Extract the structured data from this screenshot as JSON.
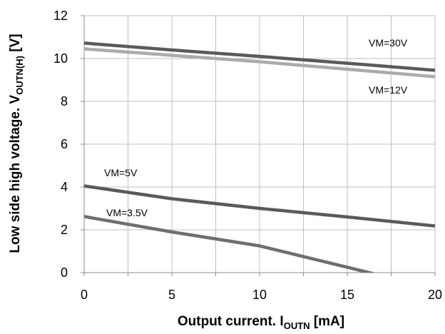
{
  "chart_data": {
    "type": "line",
    "xlabel_main": "Output current. I",
    "xlabel_sub": "OUTN",
    "xlabel_tail": " [mA]",
    "ylabel_main": "Low side high voltage. V",
    "ylabel_sub": "OUTN(H)",
    "ylabel_tail": " [V]",
    "xlim": [
      0,
      20
    ],
    "ylim": [
      0,
      12
    ],
    "x_ticks": [
      0,
      5,
      10,
      15,
      20
    ],
    "y_ticks": [
      0,
      2,
      4,
      6,
      8,
      10,
      12
    ],
    "x_tick_labels": [
      "0",
      "5",
      "10",
      "15",
      "20"
    ],
    "y_tick_labels": [
      "0",
      "2",
      "4",
      "6",
      "8",
      "10",
      "12"
    ],
    "grid": true,
    "series": [
      {
        "name": "VM=30V",
        "color": "#5a5a5a",
        "x": [
          0,
          5,
          10,
          15,
          20
        ],
        "y": [
          10.72,
          10.4,
          10.1,
          9.78,
          9.45
        ]
      },
      {
        "name": "VM=12V",
        "color": "#ababab",
        "x": [
          0,
          5,
          10,
          15,
          20
        ],
        "y": [
          10.45,
          10.15,
          9.85,
          9.5,
          9.15
        ]
      },
      {
        "name": "VM=5V",
        "color": "#5a5a5a",
        "x": [
          0,
          5,
          10,
          15,
          20
        ],
        "y": [
          4.05,
          3.45,
          3.0,
          2.6,
          2.18
        ]
      },
      {
        "name": "VM=3.5V",
        "color": "#6e6e6e",
        "x": [
          0,
          5,
          10,
          16.5
        ],
        "y": [
          2.62,
          1.9,
          1.25,
          -0.05
        ]
      }
    ]
  }
}
